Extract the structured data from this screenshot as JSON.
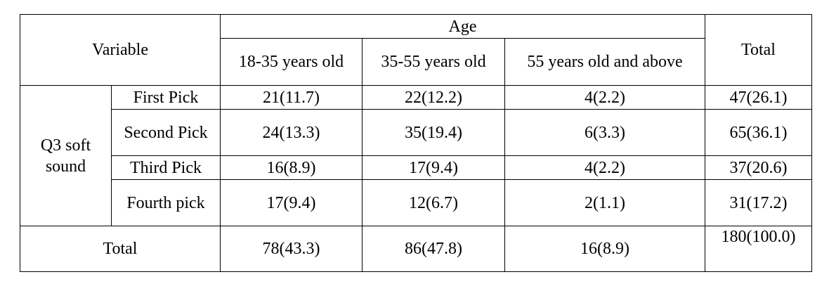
{
  "table": {
    "header": {
      "variable": "Variable",
      "age": "Age",
      "total": "Total",
      "age_groups": [
        "18-35 years old",
        "35-55 years old",
        "55 years old and above"
      ]
    },
    "group": "Q3 soft sound",
    "rows": [
      {
        "label": "First Pick",
        "cells": [
          "21(11.7)",
          "22(12.2)",
          "4(2.2)",
          "47(26.1)"
        ]
      },
      {
        "label": "Second Pick",
        "cells": [
          "24(13.3)",
          "35(19.4)",
          "6(3.3)",
          "65(36.1)"
        ]
      },
      {
        "label": "Third Pick",
        "cells": [
          "16(8.9)",
          "17(9.4)",
          "4(2.2)",
          "37(20.6)"
        ]
      },
      {
        "label": "Fourth pick",
        "cells": [
          "17(9.4)",
          "12(6.7)",
          "2(1.1)",
          "31(17.2)"
        ]
      }
    ],
    "total_row": {
      "label": "Total",
      "cells": [
        "78(43.3)",
        "86(47.8)",
        "16(8.9)",
        "180(100.0)"
      ]
    }
  }
}
